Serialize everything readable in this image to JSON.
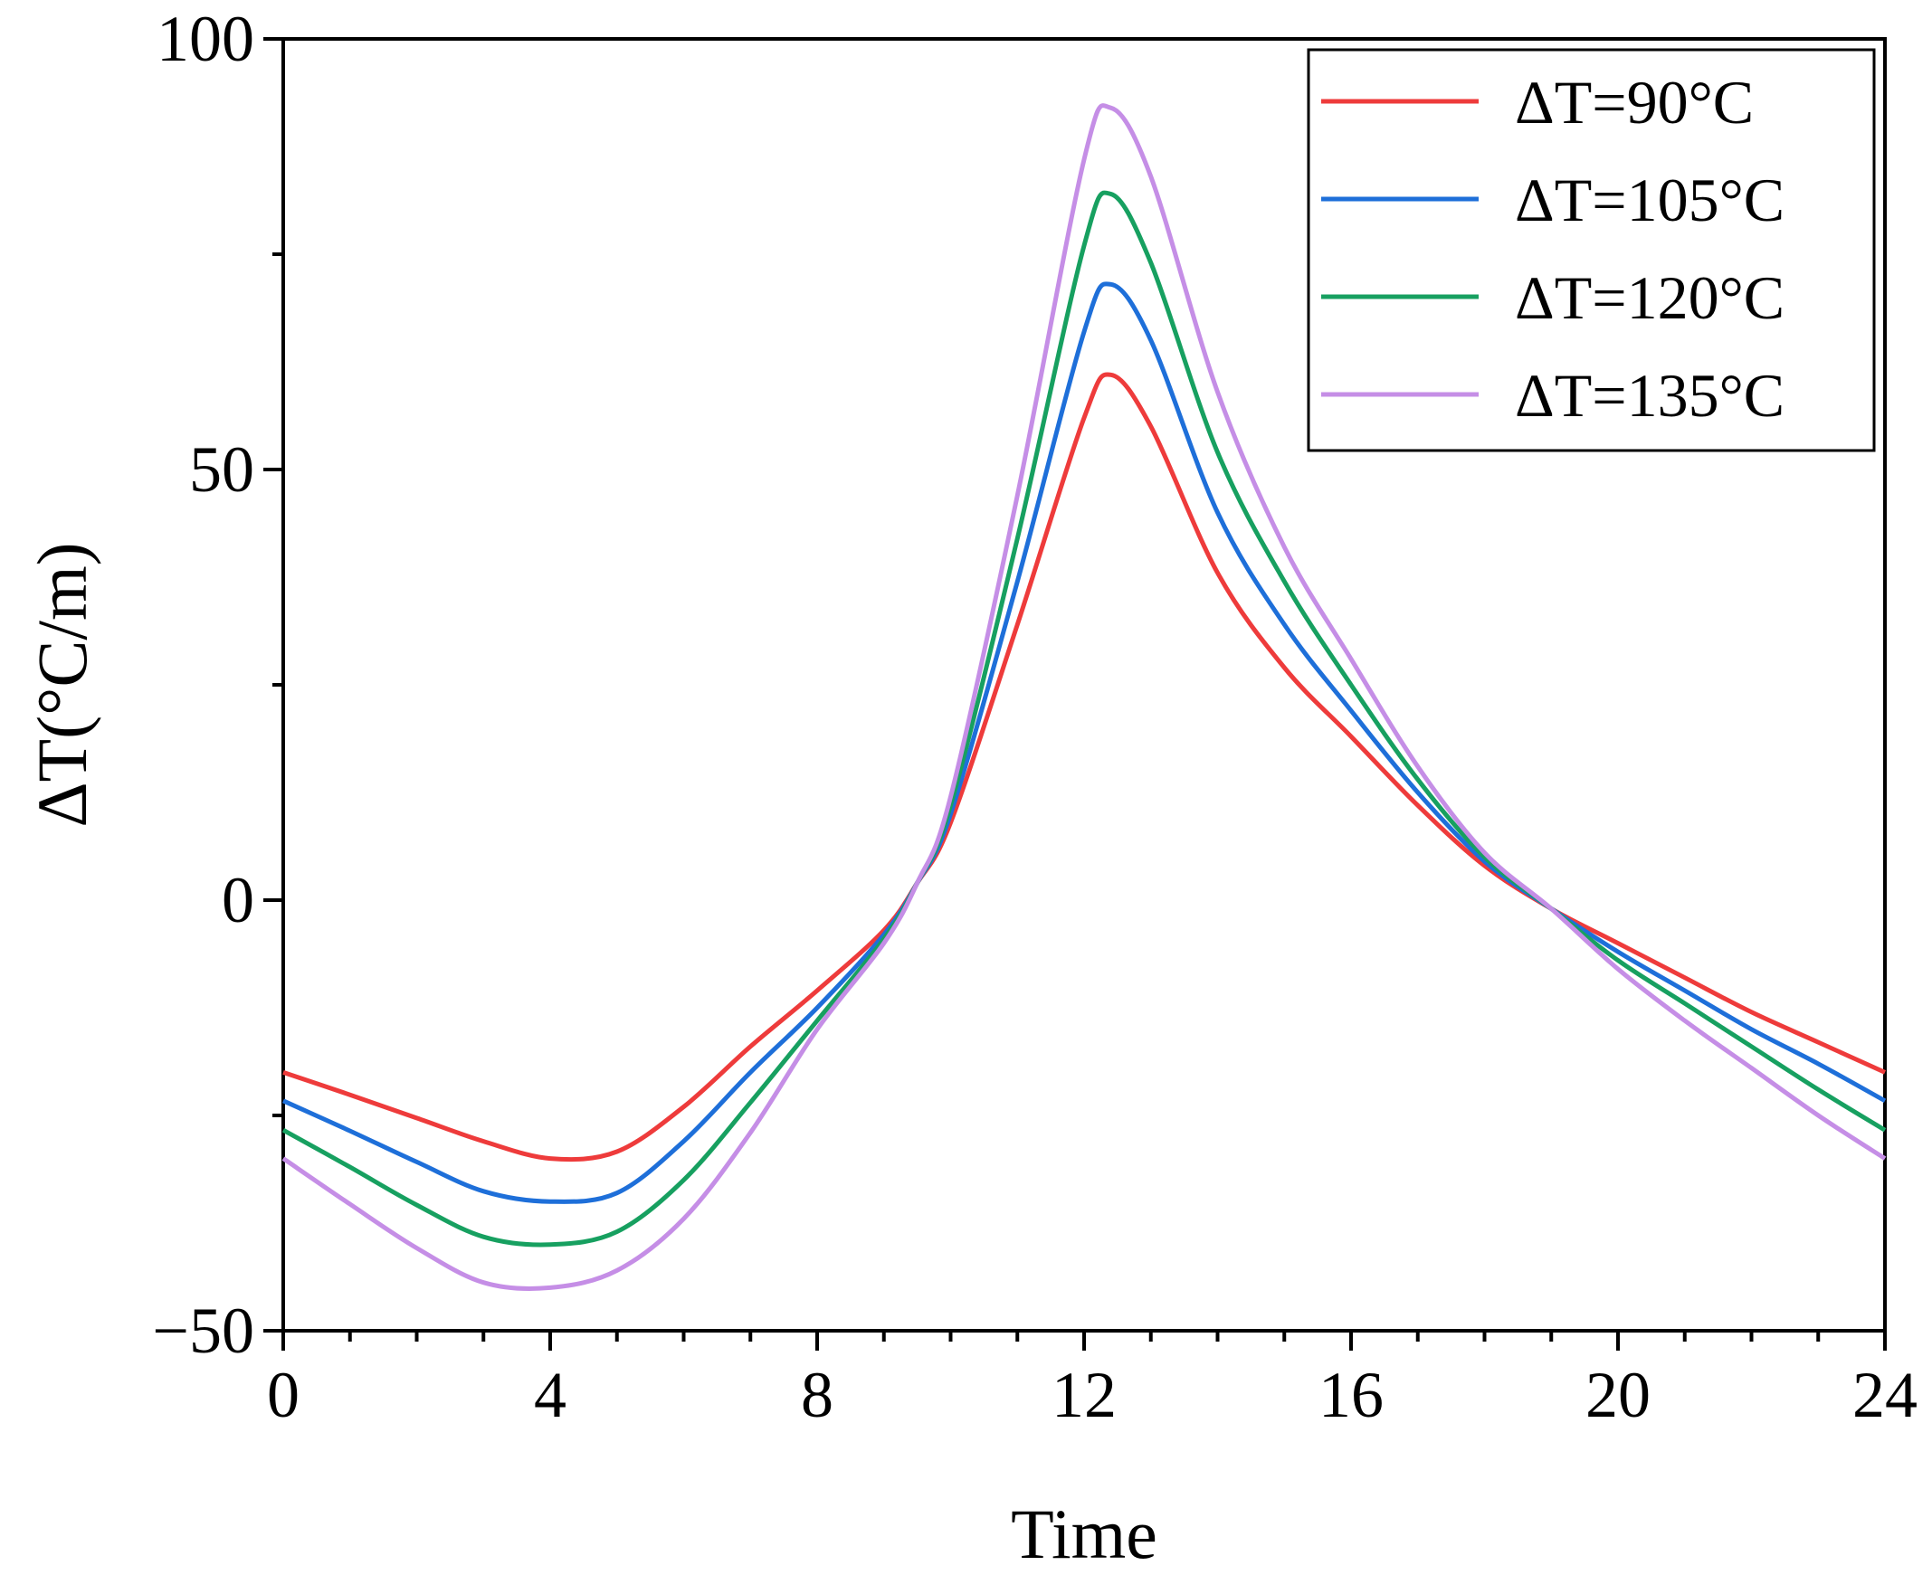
{
  "chart_data": {
    "type": "line",
    "title": "",
    "xlabel": "Time",
    "ylabel": "ΔT(°C/m)",
    "xlim": [
      0,
      24
    ],
    "ylim": [
      -50,
      100
    ],
    "xticks": [
      0,
      4,
      8,
      12,
      16,
      20,
      24
    ],
    "xtick_labels": [
      "0",
      "4",
      "8",
      "12",
      "16",
      "20",
      "24"
    ],
    "yticks": [
      -50,
      0,
      50,
      100
    ],
    "ytick_labels": [
      "−50",
      "0",
      "50",
      "100"
    ],
    "grid": false,
    "legend_position": "top-right",
    "x": [
      0,
      1,
      2,
      3,
      4,
      5,
      6,
      7,
      8,
      9,
      9.5,
      10,
      11,
      12,
      12.4,
      13,
      14,
      15,
      16,
      17,
      18,
      19,
      20,
      21,
      22,
      23,
      24
    ],
    "series": [
      {
        "name": "ΔT=90°C",
        "color": "#ee3b3b",
        "values": [
          -20,
          -22.6,
          -25.3,
          -28,
          -30,
          -29.2,
          -24,
          -17,
          -10.5,
          -3.5,
          2,
          9,
          32,
          56,
          61,
          55,
          38,
          27,
          19,
          11,
          4,
          -1,
          -5,
          -9,
          -13,
          -16.5,
          -20
        ]
      },
      {
        "name": "ΔT=105°C",
        "color": "#1e6fd9",
        "values": [
          -23.3,
          -26.8,
          -30.4,
          -33.8,
          -35,
          -34,
          -28,
          -20,
          -12.5,
          -4,
          2,
          10,
          37,
          66,
          71.5,
          65,
          45,
          32,
          22,
          12.5,
          4.5,
          -1,
          -6,
          -10.5,
          -15,
          -19,
          -23.3
        ]
      },
      {
        "name": "ΔT=120°C",
        "color": "#17a060",
        "values": [
          -26.7,
          -31,
          -35.4,
          -39.1,
          -40,
          -38.5,
          -32.5,
          -23.5,
          -14,
          -4.5,
          2,
          11,
          42,
          76,
          82,
          74,
          52,
          37,
          25,
          14,
          5,
          -1,
          -7,
          -12,
          -17,
          -22,
          -26.7
        ]
      },
      {
        "name": "ΔT=135°C",
        "color": "#c58ee6",
        "values": [
          -30,
          -35.3,
          -40.4,
          -44.4,
          -45,
          -43,
          -37,
          -27,
          -15,
          -5,
          2,
          12,
          47,
          86,
          92,
          84,
          59,
          41,
          28,
          15.5,
          5.5,
          -1,
          -8,
          -14,
          -19.5,
          -25,
          -30
        ]
      }
    ]
  }
}
